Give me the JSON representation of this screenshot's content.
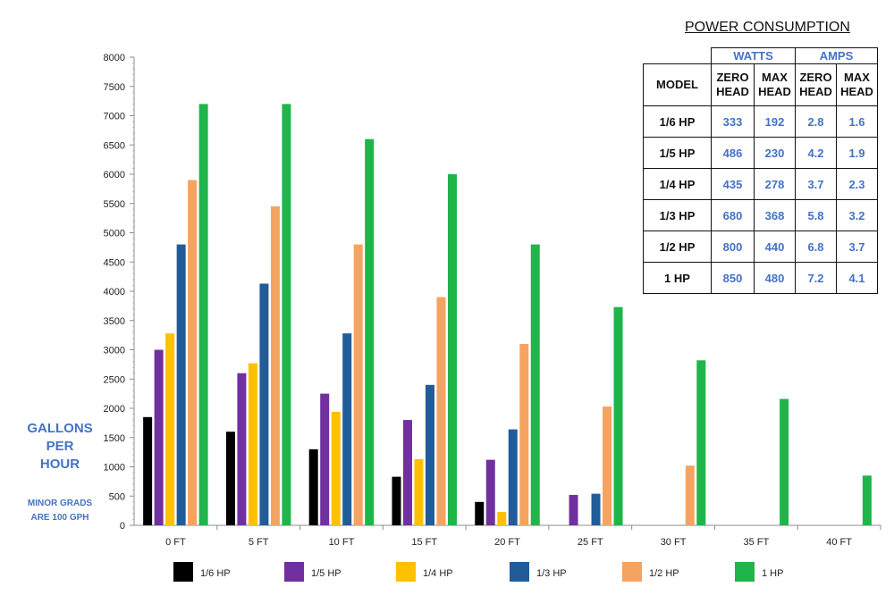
{
  "chart_data": {
    "type": "bar",
    "categories": [
      "0 FT",
      "5 FT",
      "10 FT",
      "15 FT",
      "20 FT",
      "25 FT",
      "30 FT",
      "35 FT",
      "40 FT"
    ],
    "series": [
      {
        "name": "1/6 HP",
        "color": "#000000",
        "values": [
          1850,
          1600,
          1300,
          830,
          400,
          null,
          null,
          null,
          null
        ]
      },
      {
        "name": "1/5 HP",
        "color": "#7030a0",
        "values": [
          3000,
          2600,
          2250,
          1800,
          1120,
          520,
          null,
          null,
          null
        ]
      },
      {
        "name": "1/4 HP",
        "color": "#ffc000",
        "values": [
          3280,
          2770,
          1940,
          1130,
          230,
          null,
          null,
          null,
          null
        ]
      },
      {
        "name": "1/3 HP",
        "color": "#1f5c99",
        "values": [
          4800,
          4130,
          3280,
          2400,
          1640,
          540,
          null,
          null,
          null
        ]
      },
      {
        "name": "1/2 HP",
        "color": "#f4a460",
        "values": [
          5900,
          5450,
          4800,
          3900,
          3100,
          2030,
          1020,
          null,
          null
        ]
      },
      {
        "name": "1 HP",
        "color": "#1fb54a",
        "values": [
          7200,
          7200,
          6600,
          6000,
          4800,
          3730,
          2820,
          2160,
          850
        ]
      }
    ],
    "ylim": [
      0,
      8000
    ],
    "yticks": [
      0,
      500,
      1000,
      1500,
      2000,
      2500,
      3000,
      3500,
      4000,
      4500,
      5000,
      5500,
      6000,
      6500,
      7000,
      7500,
      8000
    ],
    "ylabel": "GALLONS PER HOUR",
    "ylabel_lines": [
      "GALLONS",
      "PER",
      "HOUR"
    ],
    "ynote_lines": [
      "MINOR GRADS",
      "ARE 100 GPH"
    ],
    "grid": false,
    "legend": "bottom"
  },
  "power_table": {
    "title": "POWER CONSUMPTION",
    "watts_label": "WATTS",
    "amps_label": "AMPS",
    "model_label": "MODEL",
    "zero_head_lines": [
      "ZERO",
      "HEAD"
    ],
    "max_head_lines": [
      "MAX",
      "HEAD"
    ],
    "rows": [
      {
        "model": "1/6 HP",
        "watts_zero": "333",
        "watts_max": "192",
        "amps_zero": "2.8",
        "amps_max": "1.6"
      },
      {
        "model": "1/5 HP",
        "watts_zero": "486",
        "watts_max": "230",
        "amps_zero": "4.2",
        "amps_max": "1.9"
      },
      {
        "model": "1/4 HP",
        "watts_zero": "435",
        "watts_max": "278",
        "amps_zero": "3.7",
        "amps_max": "2.3"
      },
      {
        "model": "1/3 HP",
        "watts_zero": "680",
        "watts_max": "368",
        "amps_zero": "5.8",
        "amps_max": "3.2"
      },
      {
        "model": "1/2 HP",
        "watts_zero": "800",
        "watts_max": "440",
        "amps_zero": "6.8",
        "amps_max": "3.7"
      },
      {
        "model": "1 HP",
        "watts_zero": "850",
        "watts_max": "480",
        "amps_zero": "7.2",
        "amps_max": "4.1"
      }
    ]
  }
}
